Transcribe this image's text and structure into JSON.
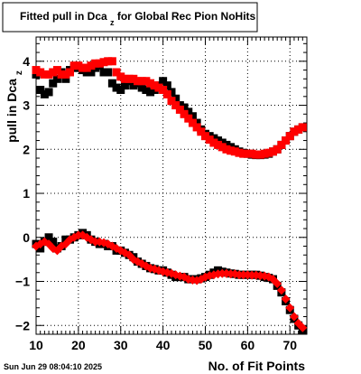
{
  "chart_data": {
    "type": "scatter",
    "title_main": "Fitted pull in Dca",
    "title_sub": "z",
    "title_rest": " for Global Rec Pion NoHits",
    "xlabel": "No. of Fit Points",
    "ylabel_main": "pull in Dca",
    "ylabel_sub": "z",
    "xlim": [
      10,
      74
    ],
    "ylim": [
      -2.2,
      4.55
    ],
    "xticks": [
      10,
      20,
      30,
      40,
      50,
      60,
      70
    ],
    "yticks": [
      -2,
      -1,
      0,
      1,
      2,
      3,
      4
    ],
    "grid": true,
    "timestamp": "Sun Jun 29 08:04:10 2025",
    "colors": {
      "series_a": "#000000",
      "series_b": "#ff0000"
    },
    "series": [
      {
        "marker": "square",
        "color": "#000000",
        "x": [
          10,
          11,
          12,
          13,
          14,
          15,
          16,
          17,
          18,
          19,
          20,
          21,
          22,
          23,
          24,
          25,
          26,
          27,
          28,
          29,
          30,
          31,
          32,
          33,
          34,
          35,
          36,
          37,
          38,
          39,
          40,
          41,
          42,
          43,
          44,
          45,
          46,
          47,
          48,
          49,
          50,
          51,
          52,
          53,
          54,
          55,
          56,
          57,
          58,
          59,
          60,
          61,
          62,
          63,
          64,
          65,
          66,
          67,
          68,
          69,
          70,
          71,
          72,
          73
        ],
        "y": [
          3.7,
          3.35,
          3.25,
          3.3,
          3.5,
          3.6,
          3.75,
          3.6,
          3.8,
          3.85,
          3.85,
          3.8,
          3.75,
          3.75,
          3.85,
          3.9,
          3.75,
          3.75,
          3.5,
          3.4,
          3.35,
          3.45,
          3.55,
          3.45,
          3.5,
          3.4,
          3.35,
          3.3,
          3.35,
          3.45,
          3.55,
          3.45,
          3.3,
          3.15,
          3.0,
          2.95,
          2.85,
          2.75,
          2.6,
          2.45,
          2.35,
          2.3,
          2.25,
          2.2,
          2.15,
          2.1,
          2.05,
          2.0,
          1.95,
          1.92,
          1.9,
          1.88,
          1.87,
          1.87,
          1.88,
          1.9,
          1.95,
          2.0,
          2.1,
          2.2,
          2.3,
          2.4,
          2.45,
          2.5
        ]
      },
      {
        "marker": "square",
        "color": "#000000",
        "x": [
          10,
          11,
          12,
          13,
          14,
          15,
          16,
          17,
          18,
          19,
          20,
          21,
          22,
          23,
          24,
          25,
          26,
          27,
          28,
          29,
          30,
          31,
          32,
          33,
          34,
          35,
          36,
          37,
          38,
          39,
          40,
          41,
          42,
          43,
          44,
          45,
          46,
          47,
          48,
          49,
          50,
          51,
          52,
          53,
          54,
          55,
          56,
          57,
          58,
          59,
          60,
          61,
          62,
          63,
          64,
          65,
          66,
          67,
          68,
          69,
          70,
          71,
          72,
          73
        ],
        "y": [
          -0.15,
          -0.25,
          -0.1,
          0.0,
          -0.1,
          -0.25,
          -0.2,
          -0.05,
          -0.05,
          0.0,
          0.05,
          0.1,
          0.05,
          -0.05,
          -0.1,
          -0.15,
          -0.15,
          -0.2,
          -0.2,
          -0.3,
          -0.3,
          -0.35,
          -0.4,
          -0.45,
          -0.55,
          -0.6,
          -0.65,
          -0.7,
          -0.72,
          -0.75,
          -0.75,
          -0.8,
          -0.85,
          -0.9,
          -0.9,
          -0.9,
          -0.95,
          -0.95,
          -0.95,
          -0.93,
          -0.9,
          -0.85,
          -0.8,
          -0.75,
          -0.78,
          -0.8,
          -0.82,
          -0.83,
          -0.85,
          -0.85,
          -0.85,
          -0.85,
          -0.85,
          -0.87,
          -0.9,
          -0.92,
          -0.95,
          -1.1,
          -1.25,
          -1.45,
          -1.65,
          -1.85,
          -2.0,
          -2.1
        ]
      },
      {
        "marker": "square",
        "color": "#ff0000",
        "x": [
          10,
          11,
          12,
          13,
          14,
          15,
          16,
          17,
          18,
          19,
          20,
          21,
          22,
          23,
          24,
          25,
          26,
          27,
          28,
          29,
          30,
          31,
          32,
          33,
          34,
          35,
          36,
          37,
          38,
          39,
          40,
          41,
          42,
          43,
          44,
          45,
          46,
          47,
          48,
          49,
          50,
          51,
          52,
          53,
          54,
          55,
          56,
          57,
          58,
          59,
          60,
          61,
          62,
          63,
          64,
          65,
          66,
          67,
          68,
          69,
          70,
          71,
          72,
          73
        ],
        "y": [
          3.8,
          3.75,
          3.7,
          3.7,
          3.75,
          3.8,
          3.7,
          3.7,
          3.75,
          3.9,
          3.9,
          3.85,
          3.85,
          3.9,
          3.95,
          3.95,
          3.98,
          4.0,
          4.0,
          3.75,
          3.65,
          3.6,
          3.6,
          3.6,
          3.55,
          3.55,
          3.55,
          3.5,
          3.45,
          3.4,
          3.35,
          3.25,
          3.1,
          3.0,
          2.9,
          2.8,
          2.7,
          2.6,
          2.5,
          2.4,
          2.3,
          2.22,
          2.15,
          2.1,
          2.05,
          2.0,
          1.97,
          1.95,
          1.92,
          1.9,
          1.9,
          1.9,
          1.88,
          1.88,
          1.9,
          1.92,
          1.95,
          2.0,
          2.1,
          2.2,
          2.3,
          2.4,
          2.45,
          2.5
        ]
      },
      {
        "marker": "diamond",
        "color": "#ff0000",
        "x": [
          10,
          11,
          12,
          13,
          14,
          15,
          16,
          17,
          18,
          19,
          20,
          21,
          22,
          23,
          24,
          25,
          26,
          27,
          28,
          29,
          30,
          31,
          32,
          33,
          34,
          35,
          36,
          37,
          38,
          39,
          40,
          41,
          42,
          43,
          44,
          45,
          46,
          47,
          48,
          49,
          50,
          51,
          52,
          53,
          54,
          55,
          56,
          57,
          58,
          59,
          60,
          61,
          62,
          63,
          64,
          65,
          66,
          67,
          68,
          69,
          70,
          71,
          72,
          73
        ],
        "y": [
          -0.2,
          -0.15,
          -0.1,
          -0.15,
          -0.25,
          -0.3,
          -0.2,
          -0.15,
          -0.05,
          0.0,
          0.05,
          0.05,
          0.0,
          -0.05,
          -0.1,
          -0.1,
          -0.12,
          -0.15,
          -0.2,
          -0.25,
          -0.3,
          -0.35,
          -0.4,
          -0.5,
          -0.55,
          -0.6,
          -0.65,
          -0.7,
          -0.72,
          -0.75,
          -0.78,
          -0.8,
          -0.82,
          -0.85,
          -0.88,
          -0.9,
          -0.95,
          -0.97,
          -0.98,
          -0.95,
          -0.9,
          -0.87,
          -0.85,
          -0.83,
          -0.82,
          -0.82,
          -0.83,
          -0.83,
          -0.85,
          -0.85,
          -0.85,
          -0.86,
          -0.86,
          -0.87,
          -0.88,
          -0.9,
          -0.95,
          -1.05,
          -1.2,
          -1.4,
          -1.6,
          -1.8,
          -1.95,
          -2.05
        ]
      }
    ]
  }
}
